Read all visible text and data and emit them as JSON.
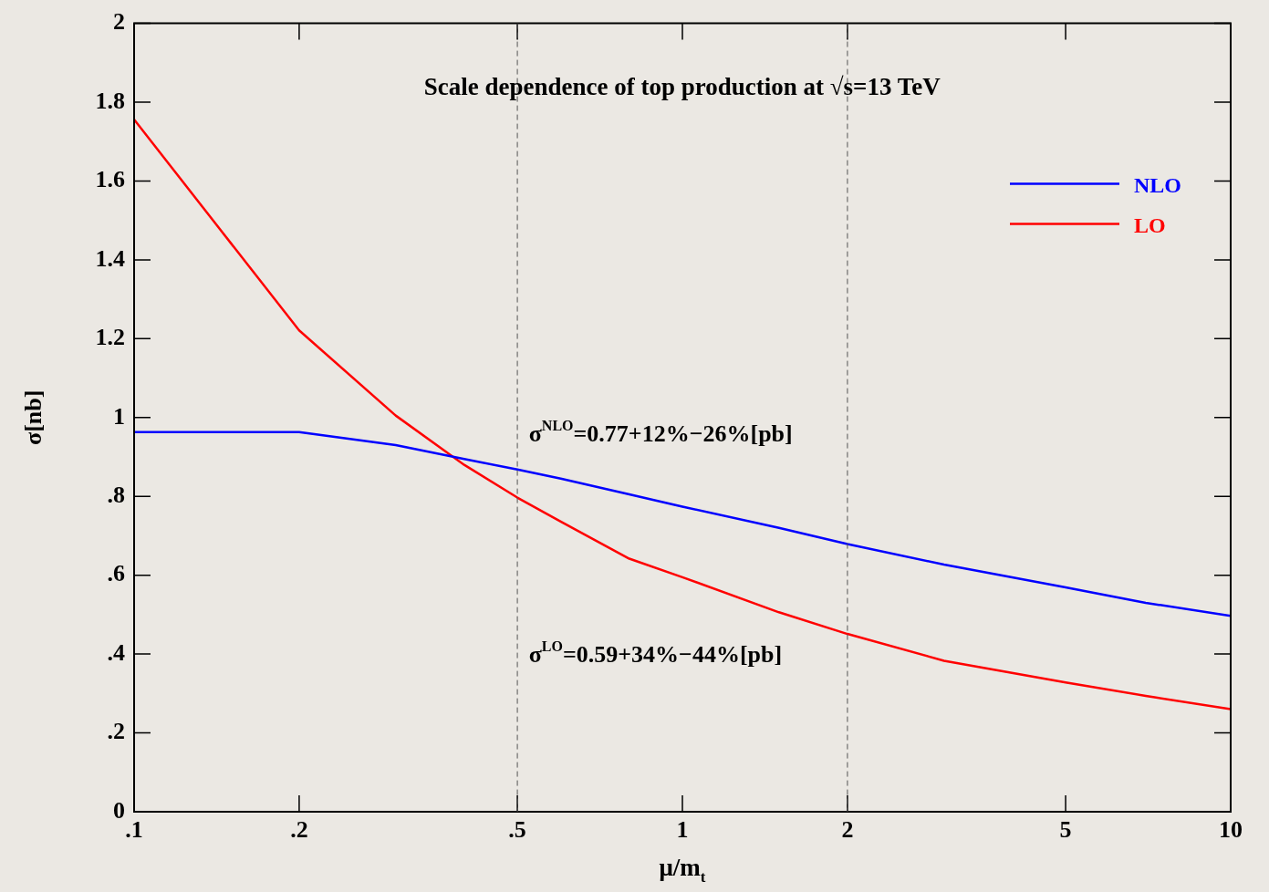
{
  "chart_data": {
    "type": "line",
    "title": "Scale dependence of top production at √s=13 TeV",
    "xlabel": "μ/m$_{t}$",
    "ylabel": "σ[nb]",
    "log": "x",
    "legend": "top right",
    "x": [
      0.1,
      0.2,
      0.3,
      0.4,
      0.5,
      0.6,
      0.8,
      1,
      1.5,
      2,
      3,
      5,
      7,
      10
    ],
    "series": [
      {
        "name": "NLO",
        "color": "#0000ff",
        "values": [
          0.963,
          0.963,
          0.93,
          0.895,
          0.868,
          0.845,
          0.805,
          0.774,
          0.72,
          0.679,
          0.627,
          0.569,
          0.53,
          0.497
        ]
      },
      {
        "name": "LO",
        "color": "#ff0000",
        "values": [
          1.756,
          1.221,
          1.005,
          0.88,
          0.797,
          0.736,
          0.642,
          0.595,
          0.506,
          0.451,
          0.383,
          0.328,
          0.294,
          0.26
        ]
      }
    ],
    "xlim": [
      0.1,
      10
    ],
    "ylim": [
      0,
      2
    ],
    "xticks": [
      {
        "value": 0.1,
        "label": ".1"
      },
      {
        "value": 0.2,
        "label": ".2"
      },
      {
        "value": 0.5,
        "label": ".5"
      },
      1,
      2,
      5,
      10
    ],
    "yticks": [
      0,
      {
        "value": 0.2,
        "label": ".2"
      },
      {
        "value": 0.4,
        "label": ".4"
      },
      {
        "value": 0.6,
        "label": ".6"
      },
      {
        "value": 0.8,
        "label": ".8"
      },
      1,
      1.2,
      1.4,
      1.6,
      1.8,
      2
    ],
    "ref_lines": [
      {
        "axis": "x",
        "value": 0.5,
        "color": "#555555",
        "line_style": "dashed"
      },
      {
        "axis": "x",
        "value": 2,
        "color": "#555555",
        "line_style": "dashed"
      }
    ],
    "annotations": [
      "σ$^{NLO}$=0.77+12%−26%[pb]",
      "σ$^{LO}$=0.59+34%−44%[pb]"
    ]
  }
}
